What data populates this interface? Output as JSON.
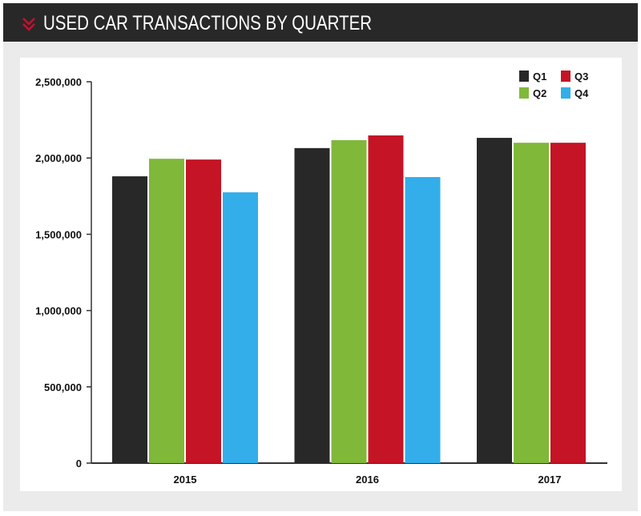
{
  "header": {
    "title": "USED CAR TRANSACTIONS BY QUARTER",
    "icon": "double-chevron-down-icon",
    "icon_color": "#c8102e"
  },
  "chart_data": {
    "type": "bar",
    "title": "USED CAR TRANSACTIONS BY QUARTER",
    "categories": [
      "2015",
      "2016",
      "2017"
    ],
    "series": [
      {
        "name": "Q1",
        "color": "#282828",
        "values": [
          1880000,
          2065000,
          2132000
        ]
      },
      {
        "name": "Q2",
        "color": "#80b83a",
        "values": [
          1995000,
          2117000,
          2100000
        ]
      },
      {
        "name": "Q3",
        "color": "#c41425",
        "values": [
          1990000,
          2148000,
          2100000
        ]
      },
      {
        "name": "Q4",
        "color": "#33aeea",
        "values": [
          1775000,
          1875000,
          null
        ]
      }
    ],
    "ylim": [
      0,
      2500000
    ],
    "yticks": [
      0,
      500000,
      1000000,
      1500000,
      2000000,
      2500000
    ],
    "ytick_labels": [
      "0",
      "500,000",
      "1,000,000",
      "1,500,000",
      "2,000,000",
      "2,500,000"
    ],
    "grid": false,
    "legend_position": "top-right",
    "xlabel": "",
    "ylabel": ""
  }
}
